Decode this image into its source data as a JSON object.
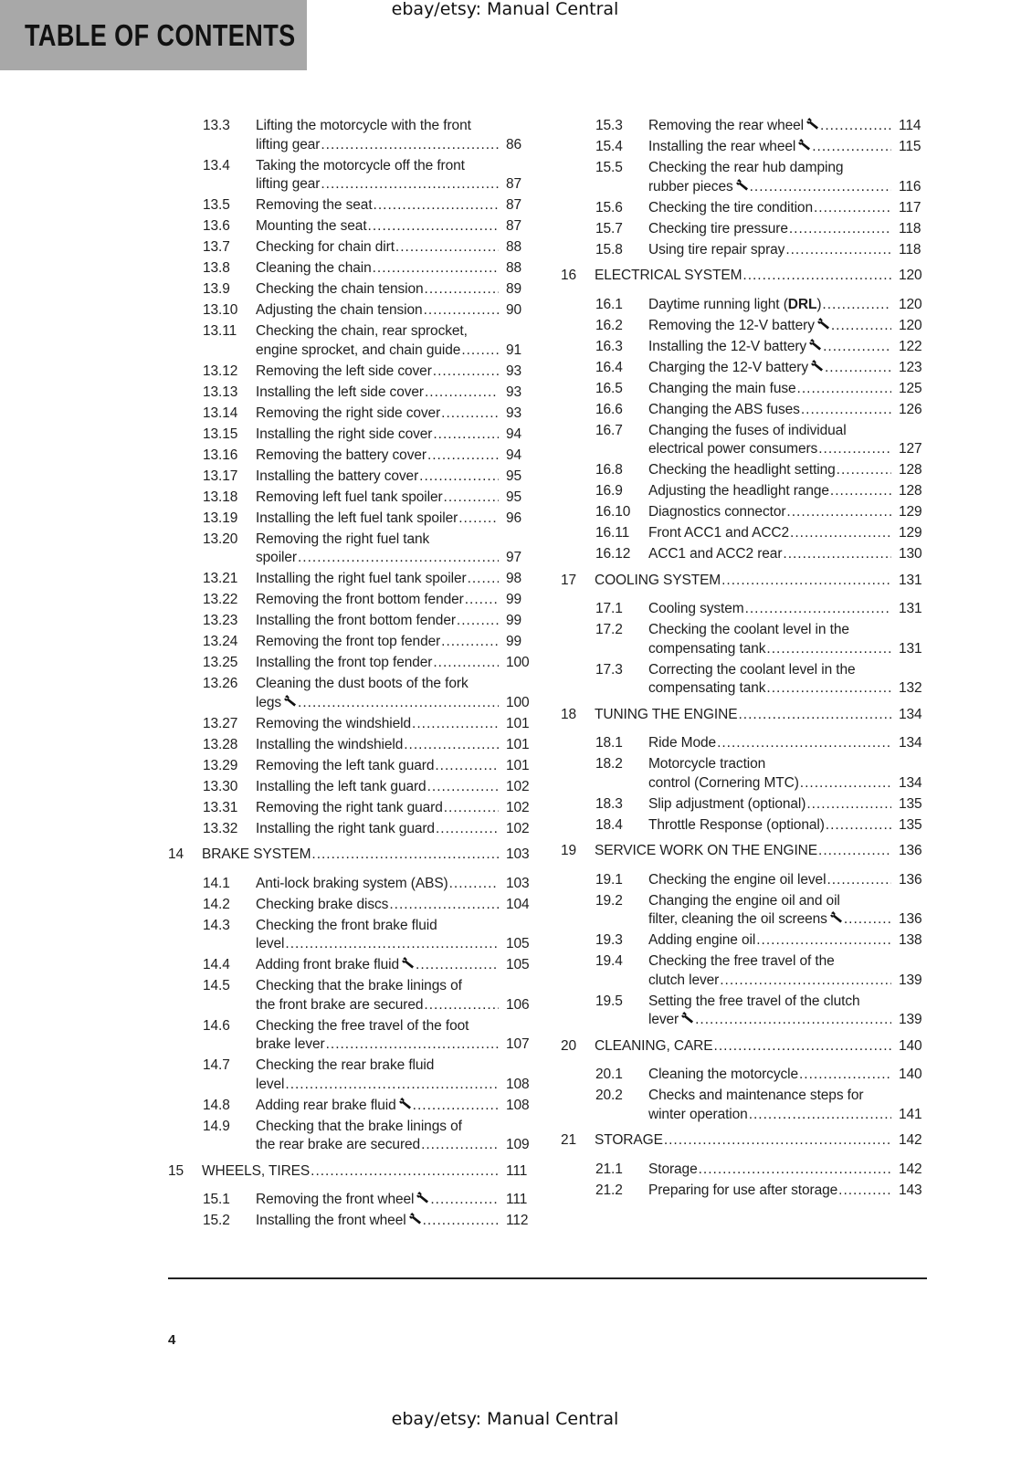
{
  "header": {
    "title": "TABLE OF CONTENTS",
    "background": "#a8a8a8"
  },
  "watermark": {
    "top": "ebay/etsy: Manual Central",
    "bottom": "ebay/etsy: Manual Central"
  },
  "footer": {
    "page_number": "4"
  },
  "toc": {
    "left": [
      {
        "number": "13.3",
        "lines": [
          "Lifting the motorcycle with the front",
          "lifting gear"
        ],
        "page": "86"
      },
      {
        "number": "13.4",
        "lines": [
          "Taking the motorcycle off the front",
          "lifting gear"
        ],
        "page": "87"
      },
      {
        "number": "13.5",
        "lines": [
          "Removing the seat"
        ],
        "page": "87"
      },
      {
        "number": "13.6",
        "lines": [
          "Mounting the seat"
        ],
        "page": "87"
      },
      {
        "number": "13.7",
        "lines": [
          "Checking for chain dirt"
        ],
        "page": "88"
      },
      {
        "number": "13.8",
        "lines": [
          "Cleaning the chain"
        ],
        "page": "88"
      },
      {
        "number": "13.9",
        "lines": [
          "Checking the chain tension"
        ],
        "page": "89"
      },
      {
        "number": "13.10",
        "lines": [
          "Adjusting the chain tension"
        ],
        "page": "90"
      },
      {
        "number": "13.11",
        "lines": [
          "Checking the chain, rear sprocket,",
          "engine sprocket, and chain guide"
        ],
        "page": "91"
      },
      {
        "number": "13.12",
        "lines": [
          "Removing the left side cover"
        ],
        "page": "93"
      },
      {
        "number": "13.13",
        "lines": [
          "Installing the left side cover"
        ],
        "page": "93"
      },
      {
        "number": "13.14",
        "lines": [
          "Removing the right side cover"
        ],
        "page": "93"
      },
      {
        "number": "13.15",
        "lines": [
          "Installing the right side cover"
        ],
        "page": "94"
      },
      {
        "number": "13.16",
        "lines": [
          "Removing the battery cover"
        ],
        "page": "94"
      },
      {
        "number": "13.17",
        "lines": [
          "Installing the battery cover"
        ],
        "page": "95"
      },
      {
        "number": "13.18",
        "lines": [
          "Removing left fuel tank spoiler"
        ],
        "page": "95"
      },
      {
        "number": "13.19",
        "lines": [
          "Installing the left fuel tank spoiler"
        ],
        "page": "96"
      },
      {
        "number": "13.20",
        "lines": [
          "Removing the right fuel tank",
          "spoiler"
        ],
        "page": "97"
      },
      {
        "number": "13.21",
        "lines": [
          "Installing the right fuel tank spoiler"
        ],
        "page": "98"
      },
      {
        "number": "13.22",
        "lines": [
          "Removing the front bottom fender"
        ],
        "page": "99"
      },
      {
        "number": "13.23",
        "lines": [
          "Installing the front bottom fender"
        ],
        "page": "99"
      },
      {
        "number": "13.24",
        "lines": [
          "Removing the front top fender"
        ],
        "page": "99"
      },
      {
        "number": "13.25",
        "lines": [
          "Installing the front top fender"
        ],
        "page": "100"
      },
      {
        "number": "13.26",
        "lines": [
          "Cleaning the dust boots of the fork",
          "legs"
        ],
        "page": "100",
        "wrench": true
      },
      {
        "number": "13.27",
        "lines": [
          "Removing the windshield"
        ],
        "page": "101"
      },
      {
        "number": "13.28",
        "lines": [
          "Installing the windshield"
        ],
        "page": "101"
      },
      {
        "number": "13.29",
        "lines": [
          "Removing the left tank guard"
        ],
        "page": "101"
      },
      {
        "number": "13.30",
        "lines": [
          "Installing the left tank guard"
        ],
        "page": "102"
      },
      {
        "number": "13.31",
        "lines": [
          "Removing the right tank guard"
        ],
        "page": "102"
      },
      {
        "number": "13.32",
        "lines": [
          "Installing the right tank guard"
        ],
        "page": "102"
      },
      {
        "number": "14",
        "lines": [
          "BRAKE SYSTEM"
        ],
        "page": "103",
        "chapter": true
      },
      {
        "number": "14.1",
        "lines": [
          "Anti-lock braking system (ABS)"
        ],
        "page": "103"
      },
      {
        "number": "14.2",
        "lines": [
          "Checking brake discs"
        ],
        "page": "104"
      },
      {
        "number": "14.3",
        "lines": [
          "Checking the front brake fluid",
          "level"
        ],
        "page": "105"
      },
      {
        "number": "14.4",
        "lines": [
          "Adding front brake fluid"
        ],
        "page": "105",
        "wrench": true
      },
      {
        "number": "14.5",
        "lines": [
          "Checking that the brake linings of",
          "the front brake are secured"
        ],
        "page": "106"
      },
      {
        "number": "14.6",
        "lines": [
          "Checking the free travel of the foot",
          "brake lever"
        ],
        "page": "107"
      },
      {
        "number": "14.7",
        "lines": [
          "Checking the rear brake fluid",
          "level"
        ],
        "page": "108"
      },
      {
        "number": "14.8",
        "lines": [
          "Adding rear brake fluid"
        ],
        "page": "108",
        "wrench": true
      },
      {
        "number": "14.9",
        "lines": [
          "Checking that the brake linings of",
          "the rear brake are secured"
        ],
        "page": "109"
      },
      {
        "number": "15",
        "lines": [
          "WHEELS, TIRES"
        ],
        "page": "111",
        "chapter": true
      },
      {
        "number": "15.1",
        "lines": [
          "Removing the front wheel"
        ],
        "page": "111",
        "wrench": true
      },
      {
        "number": "15.2",
        "lines": [
          "Installing the front wheel"
        ],
        "page": "112",
        "wrench": true
      }
    ],
    "right": [
      {
        "number": "15.3",
        "lines": [
          "Removing the rear wheel"
        ],
        "page": "114",
        "wrench": true
      },
      {
        "number": "15.4",
        "lines": [
          "Installing the rear wheel"
        ],
        "page": "115",
        "wrench": true
      },
      {
        "number": "15.5",
        "lines": [
          "Checking the rear hub damping",
          "rubber pieces"
        ],
        "page": "116",
        "wrench": true
      },
      {
        "number": "15.6",
        "lines": [
          "Checking the tire condition"
        ],
        "page": "117"
      },
      {
        "number": "15.7",
        "lines": [
          "Checking tire pressure"
        ],
        "page": "118"
      },
      {
        "number": "15.8",
        "lines": [
          "Using tire repair spray"
        ],
        "page": "118"
      },
      {
        "number": "16",
        "lines": [
          "ELECTRICAL SYSTEM"
        ],
        "page": "120",
        "chapter": true
      },
      {
        "number": "16.1",
        "lines": [
          "Daytime running light (DRL)"
        ],
        "page": "120",
        "bold": "DRL"
      },
      {
        "number": "16.2",
        "lines": [
          "Removing the 12-V battery"
        ],
        "page": "120",
        "wrench": true
      },
      {
        "number": "16.3",
        "lines": [
          "Installing the 12-V battery"
        ],
        "page": "122",
        "wrench": true
      },
      {
        "number": "16.4",
        "lines": [
          "Charging the 12-V battery"
        ],
        "page": "123",
        "wrench": true
      },
      {
        "number": "16.5",
        "lines": [
          "Changing the main fuse"
        ],
        "page": "125"
      },
      {
        "number": "16.6",
        "lines": [
          "Changing the ABS fuses"
        ],
        "page": "126"
      },
      {
        "number": "16.7",
        "lines": [
          "Changing the fuses of individual",
          "electrical power consumers"
        ],
        "page": "127"
      },
      {
        "number": "16.8",
        "lines": [
          "Checking the headlight setting"
        ],
        "page": "128"
      },
      {
        "number": "16.9",
        "lines": [
          "Adjusting the headlight range"
        ],
        "page": "128"
      },
      {
        "number": "16.10",
        "lines": [
          "Diagnostics connector"
        ],
        "page": "129"
      },
      {
        "number": "16.11",
        "lines": [
          "Front ACC1 and ACC2"
        ],
        "page": "129"
      },
      {
        "number": "16.12",
        "lines": [
          "ACC1 and ACC2 rear"
        ],
        "page": "130"
      },
      {
        "number": "17",
        "lines": [
          "COOLING SYSTEM"
        ],
        "page": "131",
        "chapter": true
      },
      {
        "number": "17.1",
        "lines": [
          "Cooling system"
        ],
        "page": "131"
      },
      {
        "number": "17.2",
        "lines": [
          "Checking the coolant level in the",
          "compensating tank"
        ],
        "page": "131"
      },
      {
        "number": "17.3",
        "lines": [
          "Correcting the coolant level in the",
          "compensating tank"
        ],
        "page": "132"
      },
      {
        "number": "18",
        "lines": [
          "TUNING THE ENGINE"
        ],
        "page": "134",
        "chapter": true
      },
      {
        "number": "18.1",
        "lines": [
          "Ride Mode"
        ],
        "page": "134"
      },
      {
        "number": "18.2",
        "lines": [
          "Motorcycle traction",
          "control (Cornering MTC)"
        ],
        "page": "134"
      },
      {
        "number": "18.3",
        "lines": [
          "Slip adjustment (optional)"
        ],
        "page": "135"
      },
      {
        "number": "18.4",
        "lines": [
          "Throttle Response (optional)"
        ],
        "page": "135"
      },
      {
        "number": "19",
        "lines": [
          "SERVICE WORK ON THE ENGINE"
        ],
        "page": "136",
        "chapter": true
      },
      {
        "number": "19.1",
        "lines": [
          "Checking the engine oil level"
        ],
        "page": "136"
      },
      {
        "number": "19.2",
        "lines": [
          "Changing the engine oil and oil",
          "filter, cleaning the oil screens"
        ],
        "page": "136",
        "wrench": true
      },
      {
        "number": "19.3",
        "lines": [
          "Adding engine oil"
        ],
        "page": "138"
      },
      {
        "number": "19.4",
        "lines": [
          "Checking the free travel of the",
          "clutch lever"
        ],
        "page": "139"
      },
      {
        "number": "19.5",
        "lines": [
          "Setting the free travel of the clutch",
          "lever"
        ],
        "page": "139",
        "wrench": true
      },
      {
        "number": "20",
        "lines": [
          "CLEANING, CARE"
        ],
        "page": "140",
        "chapter": true
      },
      {
        "number": "20.1",
        "lines": [
          "Cleaning the motorcycle"
        ],
        "page": "140"
      },
      {
        "number": "20.2",
        "lines": [
          "Checks and maintenance steps for",
          "winter operation"
        ],
        "page": "141"
      },
      {
        "number": "21",
        "lines": [
          "STORAGE"
        ],
        "page": "142",
        "chapter": true
      },
      {
        "number": "21.1",
        "lines": [
          "Storage"
        ],
        "page": "142"
      },
      {
        "number": "21.2",
        "lines": [
          "Preparing for use after storage"
        ],
        "page": "143"
      }
    ]
  }
}
